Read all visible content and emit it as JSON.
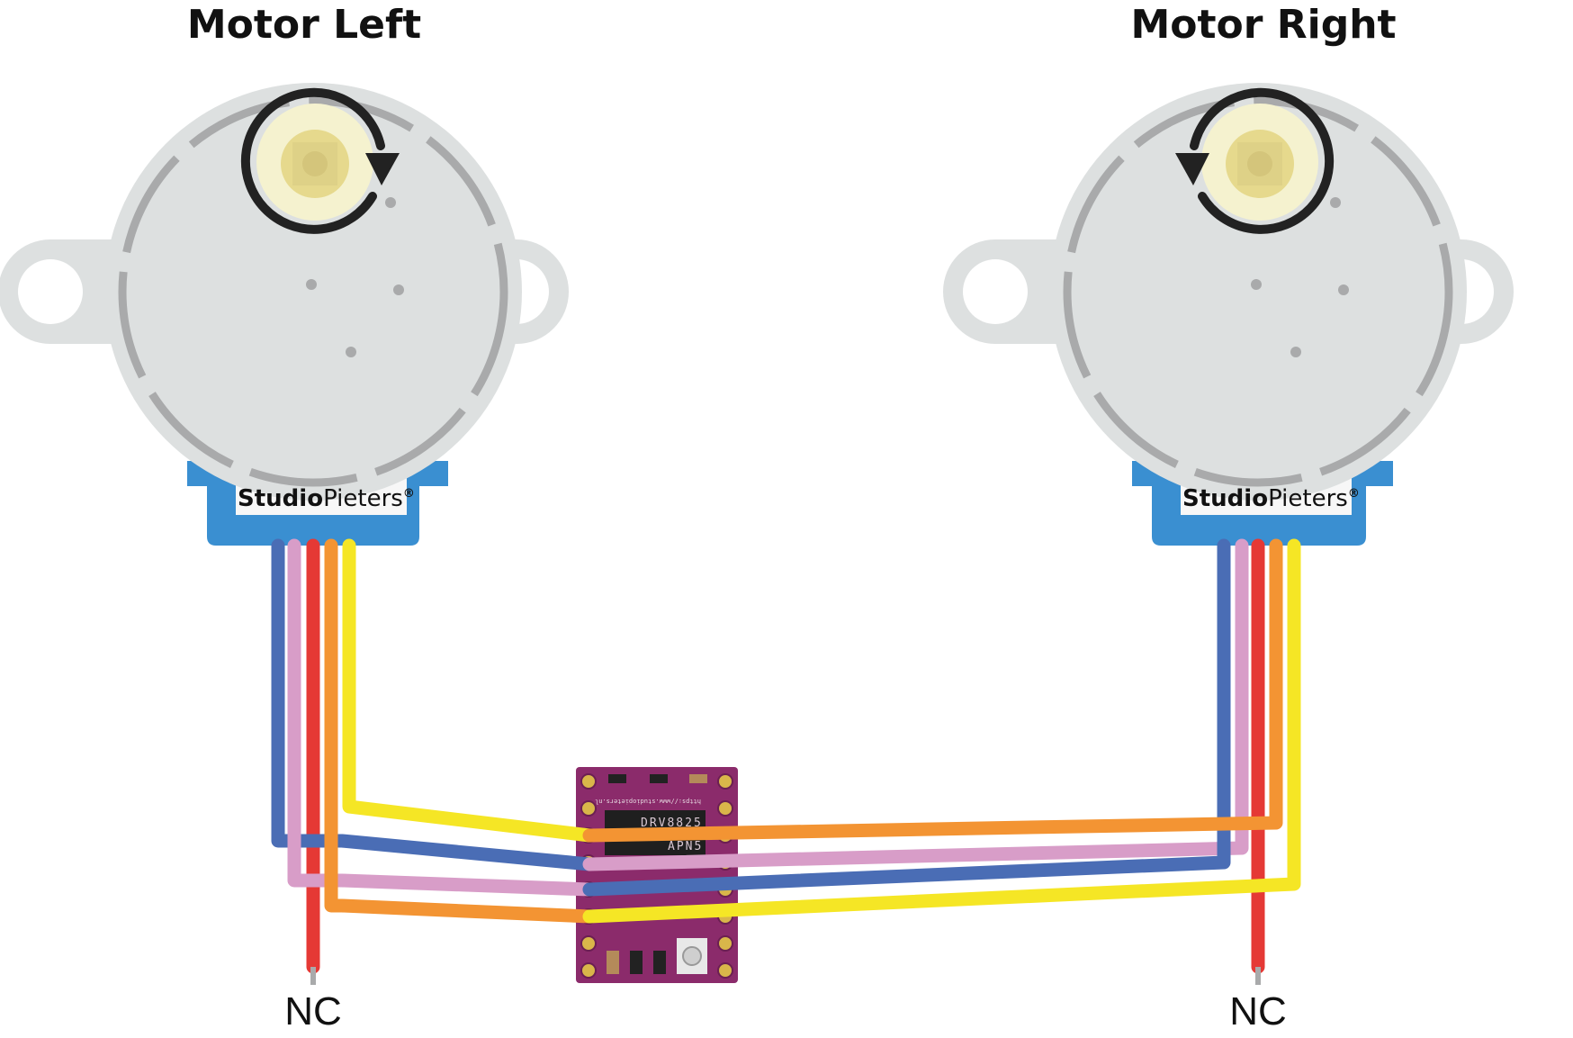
{
  "motors": [
    {
      "title": "Motor Left",
      "brand_bold": "Studio",
      "brand_regular": "Pieters",
      "brand_mark": "®",
      "rotation": "clockwise"
    },
    {
      "title": "Motor Right",
      "brand_bold": "Studio",
      "brand_regular": "Pieters",
      "brand_mark": "®",
      "rotation": "counterclockwise"
    }
  ],
  "driver": {
    "chip_label": "DRV8825",
    "chip_sub_label": "APN5",
    "url": "https://www.studiopieters.nl"
  },
  "nc_labels": [
    "NC",
    "NC"
  ],
  "wires": [
    {
      "name": "blue",
      "color": "#4a6db5"
    },
    {
      "name": "pink",
      "color": "#d89dc8"
    },
    {
      "name": "red",
      "color": "#e53935"
    },
    {
      "name": "orange",
      "color": "#f39433"
    },
    {
      "name": "yellow",
      "color": "#f5e625"
    }
  ],
  "colors": {
    "motor_body": "#dde0e0",
    "motor_ring": "#a9aaab",
    "motor_connector": "#3a8fd1",
    "shaft": "#f5f2cf",
    "shaft_inner": "#e6d98d",
    "arrow": "#222222",
    "board": "#8b2b6b"
  }
}
